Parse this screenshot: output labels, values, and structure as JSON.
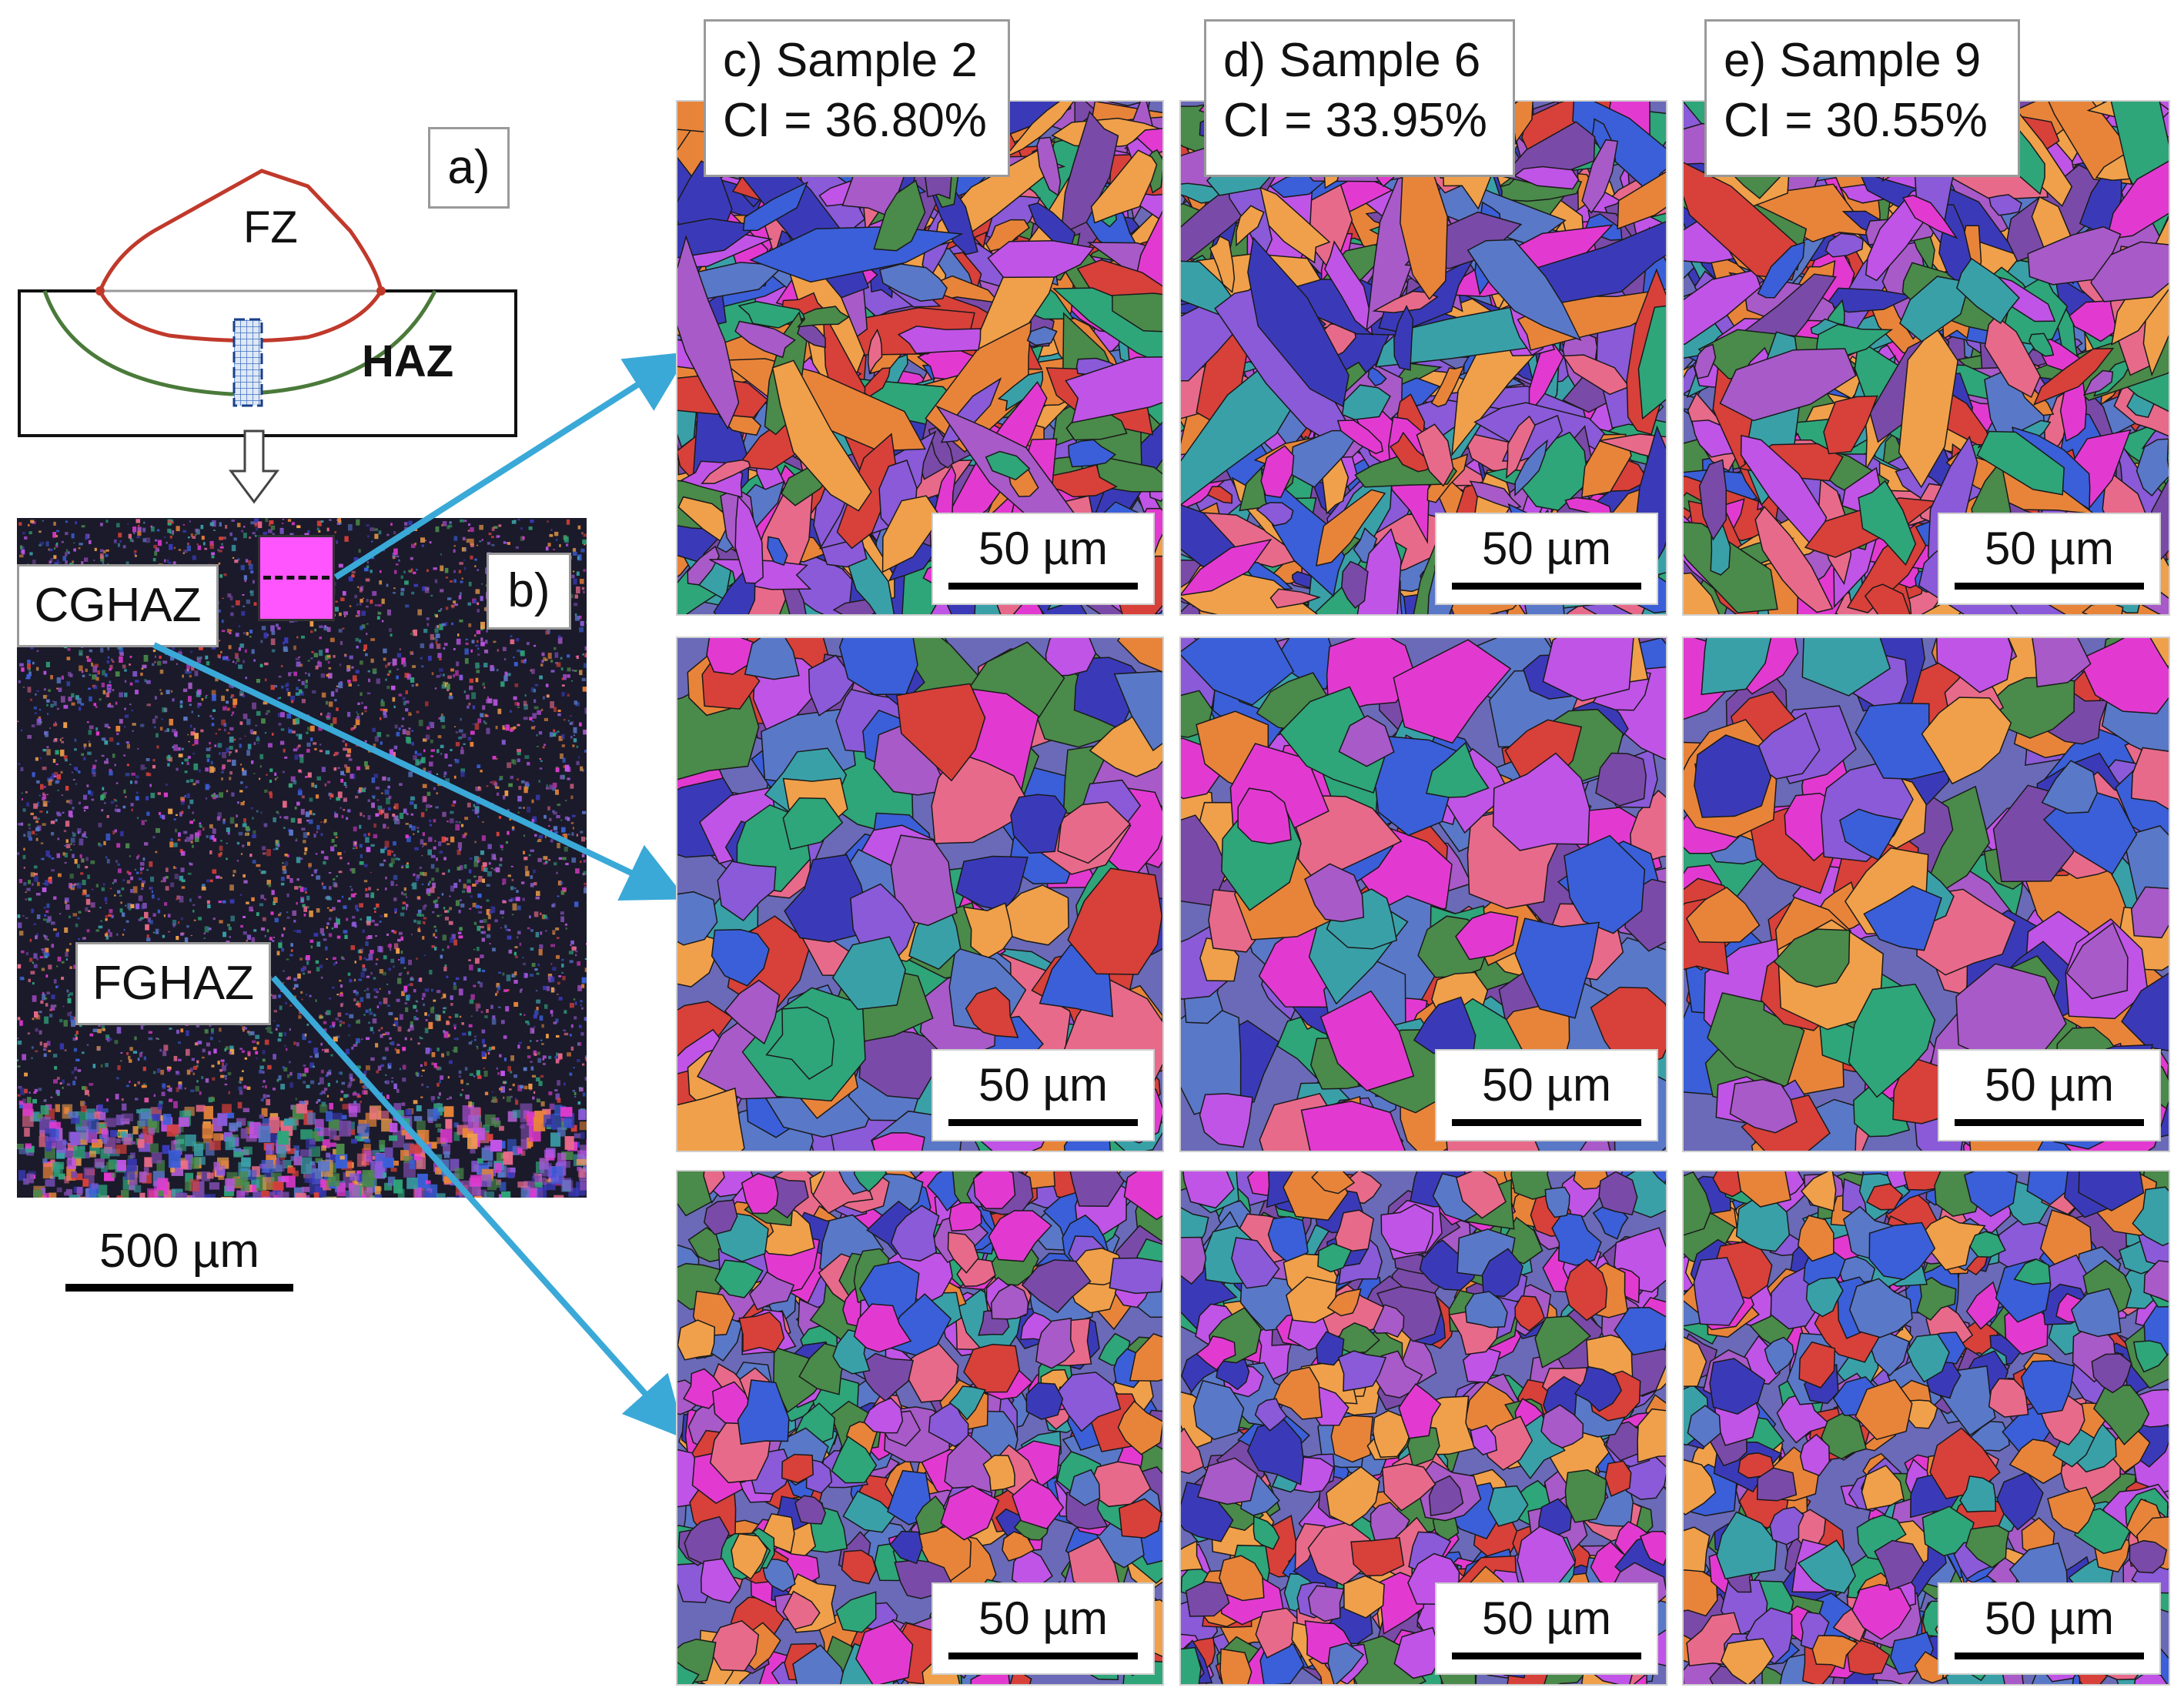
{
  "panel_a": {
    "label": "a)",
    "fz": "FZ",
    "haz": "HAZ"
  },
  "panel_b": {
    "label": "b)",
    "cghaz": "CGHAZ",
    "fghaz": "FGHAZ",
    "scale": "500 µm"
  },
  "columns": [
    {
      "label": "c) Sample 2",
      "ci": "CI = 36.80%"
    },
    {
      "label": "d) Sample 6",
      "ci": "CI = 33.95%"
    },
    {
      "label": "e) Sample 9",
      "ci": "CI = 30.55%"
    }
  ],
  "scale_bar": "50 µm",
  "colors": {
    "arrow": "#3aa9d8",
    "fusion_line": "#c0392b",
    "haz_line": "#4a7a3a",
    "marker": "#ff55ff"
  }
}
